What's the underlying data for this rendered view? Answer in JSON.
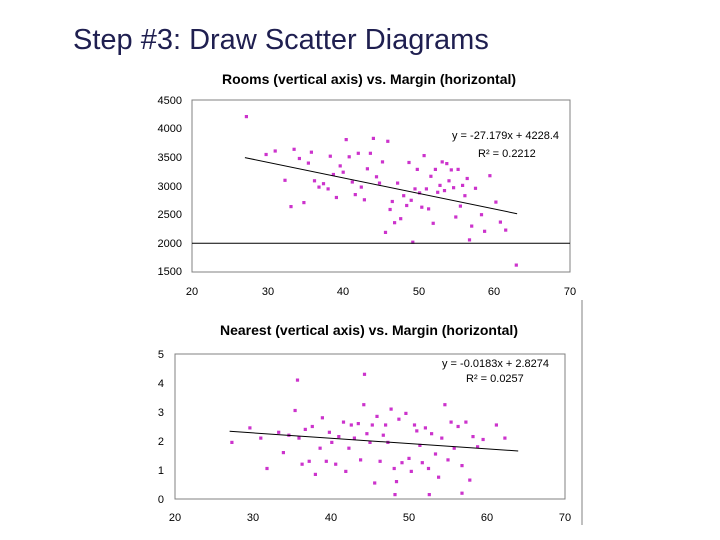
{
  "slide_title": "Step  #3: Draw Scatter Diagrams",
  "chart_data": [
    {
      "type": "scatter",
      "title": "Rooms (vertical axis) vs. Margin (horizontal)",
      "xlim": [
        20,
        70
      ],
      "ylim": [
        1500,
        4500
      ],
      "xticks": [
        "20",
        "30",
        "40",
        "50",
        "60",
        "70"
      ],
      "yticks": [
        "1500",
        "2000",
        "2500",
        "3000",
        "3500",
        "4000",
        "4500"
      ],
      "grid": false,
      "color": "#cc33cc",
      "trendline": {
        "slope": -27.179,
        "intercept": 4228.4,
        "x_range": [
          27,
          63
        ]
      },
      "equation": "y = -27.179x + 4228.4",
      "r2": "R² = 0.2212",
      "points": [
        [
          27.2,
          4210
        ],
        [
          29.8,
          3550
        ],
        [
          31,
          3610
        ],
        [
          32.3,
          3100
        ],
        [
          33.1,
          2640
        ],
        [
          33.5,
          3640
        ],
        [
          34.2,
          3480
        ],
        [
          34.8,
          2710
        ],
        [
          35.4,
          3400
        ],
        [
          35.8,
          3590
        ],
        [
          36.2,
          3090
        ],
        [
          36.8,
          2980
        ],
        [
          37.4,
          3040
        ],
        [
          38,
          2950
        ],
        [
          38.3,
          3520
        ],
        [
          38.7,
          3200
        ],
        [
          39.1,
          2800
        ],
        [
          39.6,
          3350
        ],
        [
          40,
          3240
        ],
        [
          40.4,
          3810
        ],
        [
          40.8,
          3510
        ],
        [
          41.2,
          3070
        ],
        [
          41.6,
          2850
        ],
        [
          42,
          3570
        ],
        [
          42.4,
          2980
        ],
        [
          42.8,
          2760
        ],
        [
          43.2,
          3300
        ],
        [
          43.6,
          3570
        ],
        [
          44,
          3830
        ],
        [
          44.4,
          3160
        ],
        [
          44.8,
          3050
        ],
        [
          45.2,
          3420
        ],
        [
          45.6,
          2190
        ],
        [
          45.9,
          3780
        ],
        [
          46.2,
          2590
        ],
        [
          46.5,
          2730
        ],
        [
          46.8,
          2360
        ],
        [
          47.2,
          3050
        ],
        [
          47.6,
          2430
        ],
        [
          48,
          2830
        ],
        [
          48.4,
          2660
        ],
        [
          48.7,
          3410
        ],
        [
          49,
          2750
        ],
        [
          49.2,
          2020
        ],
        [
          49.5,
          2950
        ],
        [
          49.8,
          3290
        ],
        [
          50.1,
          2880
        ],
        [
          50.4,
          2630
        ],
        [
          50.7,
          3530
        ],
        [
          51,
          2950
        ],
        [
          51.3,
          2600
        ],
        [
          51.6,
          3170
        ],
        [
          51.9,
          2350
        ],
        [
          52.2,
          3290
        ],
        [
          52.5,
          2890
        ],
        [
          52.8,
          3010
        ],
        [
          53.1,
          3420
        ],
        [
          53.4,
          2920
        ],
        [
          53.7,
          3390
        ],
        [
          54,
          3090
        ],
        [
          54.3,
          3280
        ],
        [
          54.6,
          2970
        ],
        [
          54.9,
          2460
        ],
        [
          55.2,
          3290
        ],
        [
          55.5,
          2650
        ],
        [
          55.8,
          3010
        ],
        [
          56.1,
          2830
        ],
        [
          56.4,
          3130
        ],
        [
          56.7,
          2060
        ],
        [
          57,
          2300
        ],
        [
          57.5,
          2960
        ],
        [
          58.3,
          2500
        ],
        [
          58.7,
          2210
        ],
        [
          59.4,
          3180
        ],
        [
          60.2,
          2720
        ],
        [
          60.8,
          2370
        ],
        [
          61.5,
          2230
        ],
        [
          62.9,
          1620
        ]
      ]
    },
    {
      "type": "scatter",
      "title": "Nearest (vertical axis) vs. Margin (horizontal)",
      "xlim": [
        20,
        70
      ],
      "ylim": [
        0,
        5
      ],
      "xticks": [
        "20",
        "30",
        "40",
        "50",
        "60",
        "70"
      ],
      "yticks": [
        "0",
        "1",
        "2",
        "3",
        "4",
        "5"
      ],
      "grid": false,
      "color": "#cc33cc",
      "trendline": {
        "slope": -0.0183,
        "intercept": 2.8274,
        "x_range": [
          27,
          64
        ]
      },
      "equation": "y = -0.0183x + 2.8274",
      "r2": "R² = 0.0257",
      "points": [
        [
          27.3,
          1.95
        ],
        [
          29.6,
          2.45
        ],
        [
          31,
          2.1
        ],
        [
          31.8,
          1.05
        ],
        [
          33.3,
          2.3
        ],
        [
          33.9,
          1.6
        ],
        [
          34.6,
          2.2
        ],
        [
          35.4,
          3.05
        ],
        [
          35.9,
          2.1
        ],
        [
          36.3,
          1.2
        ],
        [
          36.7,
          2.4
        ],
        [
          37.2,
          1.3
        ],
        [
          37.6,
          2.5
        ],
        [
          38,
          0.85
        ],
        [
          38.6,
          1.75
        ],
        [
          38.9,
          2.8
        ],
        [
          39.4,
          1.3
        ],
        [
          39.8,
          2.3
        ],
        [
          40.1,
          1.95
        ],
        [
          40.6,
          1.2
        ],
        [
          41,
          2.15
        ],
        [
          41.6,
          2.65
        ],
        [
          41.9,
          0.95
        ],
        [
          42.3,
          1.75
        ],
        [
          42.6,
          2.55
        ],
        [
          43,
          2.1
        ],
        [
          43.5,
          2.6
        ],
        [
          43.8,
          1.35
        ],
        [
          44.2,
          3.25
        ],
        [
          44.6,
          2.25
        ],
        [
          45,
          1.95
        ],
        [
          45.3,
          2.55
        ],
        [
          45.6,
          0.55
        ],
        [
          45.9,
          2.85
        ],
        [
          46.3,
          1.3
        ],
        [
          46.7,
          2.2
        ],
        [
          47,
          2.55
        ],
        [
          47.3,
          1.95
        ],
        [
          47.7,
          3.1
        ],
        [
          48.1,
          1.05
        ],
        [
          48.4,
          0.6
        ],
        [
          48.7,
          2.75
        ],
        [
          49.1,
          1.25
        ],
        [
          49.6,
          2.95
        ],
        [
          50,
          1.4
        ],
        [
          50.3,
          0.95
        ],
        [
          50.7,
          2.55
        ],
        [
          51,
          2.35
        ],
        [
          51.4,
          1.85
        ],
        [
          51.7,
          1.25
        ],
        [
          52.1,
          2.45
        ],
        [
          52.5,
          1.05
        ],
        [
          52.9,
          2.25
        ],
        [
          53.4,
          1.55
        ],
        [
          53.8,
          0.75
        ],
        [
          54.2,
          2.1
        ],
        [
          54.6,
          3.25
        ],
        [
          55,
          1.35
        ],
        [
          55.4,
          2.65
        ],
        [
          55.8,
          1.75
        ],
        [
          56.3,
          2.5
        ],
        [
          56.8,
          1.15
        ],
        [
          57.3,
          2.65
        ],
        [
          57.8,
          0.65
        ],
        [
          58.2,
          2.15
        ],
        [
          58.8,
          1.8
        ],
        [
          59.5,
          2.05
        ],
        [
          61.2,
          2.55
        ],
        [
          62.3,
          2.1
        ]
      ],
      "high_points": [
        [
          35.7,
          4.1
        ],
        [
          44.3,
          4.3
        ]
      ],
      "low_points": [
        [
          48.2,
          0.15
        ],
        [
          52.6,
          0.15
        ],
        [
          56.8,
          0.2
        ]
      ]
    }
  ]
}
